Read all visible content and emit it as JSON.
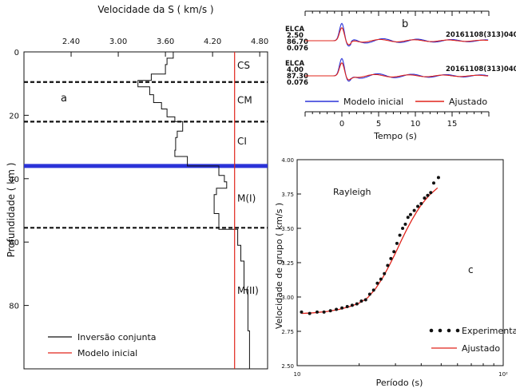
{
  "colors": {
    "black": "#111111",
    "red": "#e0241b",
    "blue": "#2b33d8",
    "bg": "#ffffff"
  },
  "chart_data": [
    {
      "panel": "a",
      "type": "line",
      "title": "Velocidade da S ( km/s )",
      "xlabel": "Velocidade da S ( km/s )",
      "ylabel": "Profundidade ( km )",
      "xlim": [
        1.8,
        4.9
      ],
      "ylim": [
        0,
        100
      ],
      "y_inverted": true,
      "xticks": [
        "2.40",
        "3.00",
        "3.60",
        "4.20",
        "4.80"
      ],
      "xtick_values": [
        2.4,
        3.0,
        3.6,
        4.2,
        4.8
      ],
      "yticks": [
        "0",
        "20",
        "40",
        "60",
        "80"
      ],
      "ytick_values": [
        0,
        20,
        40,
        60,
        80
      ],
      "layers": [
        "CS",
        "CM",
        "CI",
        "M(I)",
        "M(II)"
      ],
      "layer_label_depths": [
        4,
        15,
        28,
        46,
        75
      ],
      "boundaries": [
        {
          "depth": 9.5,
          "style": "dashed"
        },
        {
          "depth": 22,
          "style": "dashed"
        },
        {
          "depth": 36,
          "style": "solid-blue"
        },
        {
          "depth": 55.5,
          "style": "dashed"
        }
      ],
      "series": [
        {
          "name": "Inversão conjunta",
          "color": "#111111",
          "points": [
            [
              3.7,
              0
            ],
            [
              3.7,
              2
            ],
            [
              3.62,
              2
            ],
            [
              3.62,
              4
            ],
            [
              3.6,
              4
            ],
            [
              3.6,
              7
            ],
            [
              3.42,
              7
            ],
            [
              3.42,
              9
            ],
            [
              3.25,
              9
            ],
            [
              3.25,
              11
            ],
            [
              3.4,
              11
            ],
            [
              3.4,
              13.5
            ],
            [
              3.45,
              13.5
            ],
            [
              3.45,
              16
            ],
            [
              3.55,
              16
            ],
            [
              3.55,
              18
            ],
            [
              3.62,
              18
            ],
            [
              3.62,
              20.5
            ],
            [
              3.72,
              20.5
            ],
            [
              3.72,
              22
            ],
            [
              3.82,
              22
            ],
            [
              3.82,
              25
            ],
            [
              3.75,
              25
            ],
            [
              3.75,
              27
            ],
            [
              3.73,
              27
            ],
            [
              3.73,
              31
            ],
            [
              3.72,
              31
            ],
            [
              3.72,
              33
            ],
            [
              3.88,
              33
            ],
            [
              3.88,
              36
            ],
            [
              4.28,
              36
            ],
            [
              4.28,
              39
            ],
            [
              4.35,
              39
            ],
            [
              4.35,
              41
            ],
            [
              4.38,
              41
            ],
            [
              4.38,
              43
            ],
            [
              4.25,
              43
            ],
            [
              4.25,
              45
            ],
            [
              4.22,
              45
            ],
            [
              4.22,
              48
            ],
            [
              4.22,
              51
            ],
            [
              4.28,
              51
            ],
            [
              4.28,
              56
            ],
            [
              4.52,
              56
            ],
            [
              4.52,
              61
            ],
            [
              4.56,
              61
            ],
            [
              4.56,
              66
            ],
            [
              4.6,
              66
            ],
            [
              4.6,
              75
            ],
            [
              4.65,
              75
            ],
            [
              4.65,
              88
            ],
            [
              4.67,
              88
            ],
            [
              4.67,
              100
            ]
          ]
        },
        {
          "name": "Modelo inicial",
          "color": "#e0241b",
          "points": [
            [
              4.48,
              0
            ],
            [
              4.48,
              100
            ]
          ]
        }
      ],
      "label": "a",
      "legend": "bottom-left"
    },
    {
      "panel": "b",
      "type": "line",
      "xlabel": "Tempo (s)",
      "xlim": [
        -5,
        20
      ],
      "xticks": [
        "0",
        "5",
        "10",
        "15"
      ],
      "xtick_values": [
        0,
        5,
        10,
        15
      ],
      "label": "b",
      "stations": [
        {
          "name": "ELCA",
          "params": [
            "2.50",
            "86.70",
            "0.076"
          ],
          "event": "20161108(313)040"
        },
        {
          "name": "ELCA",
          "params": [
            "4.00",
            "87.30",
            "0.076"
          ],
          "event": "20161108(313)040"
        }
      ],
      "series": [
        {
          "name": "Modelo inicial",
          "color": "#2b33d8"
        },
        {
          "name": "Ajustado",
          "color": "#e0241b"
        }
      ],
      "legend": "bottom"
    },
    {
      "panel": "c",
      "type": "scatter",
      "xlabel": "Período (s)",
      "ylabel": "Velocidade de grupo ( km/s )",
      "xscale": "log",
      "xlim": [
        10,
        100
      ],
      "ylim": [
        2.5,
        4.0
      ],
      "xticks": [
        "10",
        "10²"
      ],
      "xtick_values": [
        10,
        100
      ],
      "yticks": [
        "2.50",
        "2.75",
        "3.00",
        "3.25",
        "3.50",
        "3.75",
        "4.00"
      ],
      "ytick_values": [
        2.5,
        2.75,
        3.0,
        3.25,
        3.5,
        3.75,
        4.0
      ],
      "annotation": "Rayleigh",
      "label": "c",
      "series": [
        {
          "name": "Experimental",
          "color": "#111111",
          "x": [
            10.5,
            11.5,
            12.5,
            13.5,
            14.5,
            15.5,
            16.5,
            17.5,
            18.5,
            19.5,
            20.5,
            21.5,
            22.5,
            23.5,
            24.5,
            25.5,
            26.5,
            27.5,
            28.5,
            29.5,
            30.5,
            31.5,
            32.5,
            33.5,
            34.5,
            35.5,
            37,
            38.5,
            40,
            41.5,
            43,
            44.5,
            46,
            48.5
          ],
          "y": [
            2.89,
            2.88,
            2.89,
            2.89,
            2.9,
            2.91,
            2.92,
            2.93,
            2.94,
            2.95,
            2.97,
            2.98,
            3.02,
            3.05,
            3.1,
            3.13,
            3.17,
            3.23,
            3.28,
            3.33,
            3.39,
            3.45,
            3.5,
            3.53,
            3.58,
            3.6,
            3.63,
            3.66,
            3.68,
            3.72,
            3.74,
            3.76,
            3.83,
            3.87
          ]
        },
        {
          "name": "Ajustado",
          "color": "#e0241b",
          "x": [
            10.5,
            12,
            14,
            16,
            18,
            20,
            22,
            24,
            26,
            28,
            30,
            32,
            34,
            36,
            38,
            40,
            42,
            44,
            46,
            48
          ],
          "y": [
            2.88,
            2.885,
            2.895,
            2.91,
            2.93,
            2.955,
            2.995,
            3.06,
            3.14,
            3.23,
            3.32,
            3.41,
            3.49,
            3.56,
            3.62,
            3.67,
            3.71,
            3.745,
            3.77,
            3.795
          ]
        }
      ],
      "legend": "bottom-right"
    }
  ]
}
